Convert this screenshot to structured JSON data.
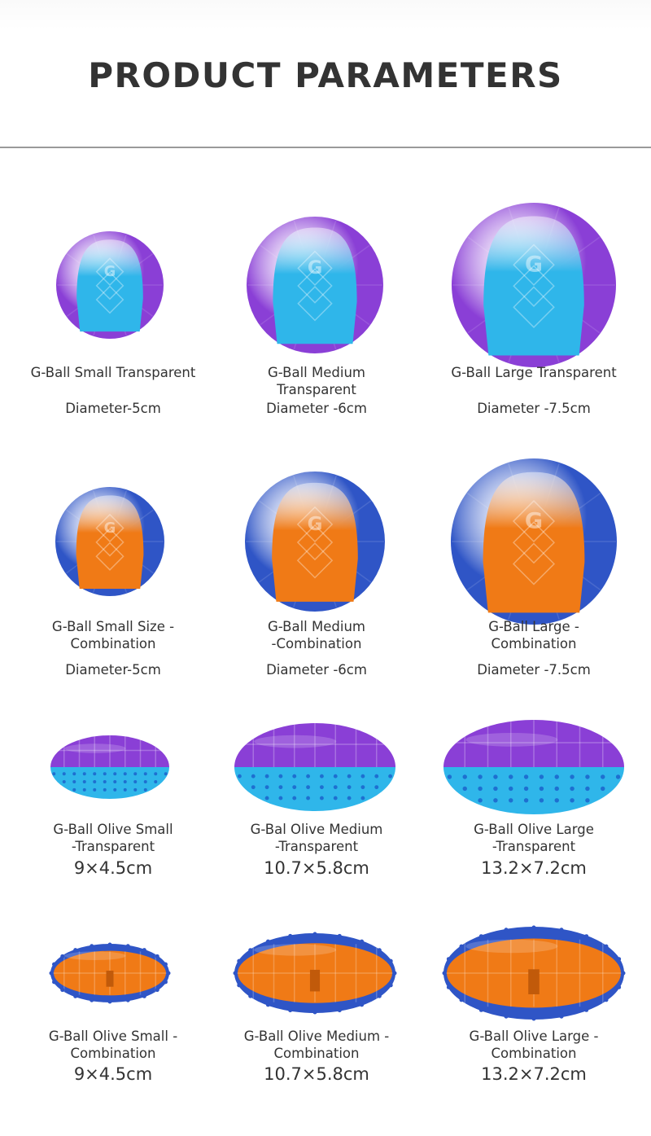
{
  "page": {
    "title": "PRODUCT PARAMETERS"
  },
  "products": [
    {
      "name": "G-Ball Small Transparent",
      "size": "Diameter-5cm",
      "shape": "ball",
      "style": "transparent"
    },
    {
      "name": "G-Ball Medium\nTransparent",
      "size": "Diameter -6cm",
      "shape": "ball",
      "style": "transparent"
    },
    {
      "name": "G-Ball Large Transparent",
      "size": "Diameter -7.5cm",
      "shape": "ball",
      "style": "transparent"
    },
    {
      "name": "G-Ball Small Size -\nCombination",
      "size": "Diameter-5cm",
      "shape": "ball",
      "style": "combination"
    },
    {
      "name": "G-Ball Medium\n-Combination",
      "size": "Diameter -6cm",
      "shape": "ball",
      "style": "combination"
    },
    {
      "name": "G-Ball Large -\nCombination",
      "size": "Diameter -7.5cm",
      "shape": "ball",
      "style": "combination"
    },
    {
      "name": "G-Ball Olive Small\n-Transparent",
      "size": "9×4.5cm",
      "shape": "olive",
      "style": "transparent"
    },
    {
      "name": "G-Bal Olive Medium\n-Transparent",
      "size": "10.7×5.8cm",
      "shape": "olive",
      "style": "transparent"
    },
    {
      "name": "G-Ball Olive Large\n-Transparent",
      "size": "13.2×7.2cm",
      "shape": "olive",
      "style": "transparent"
    },
    {
      "name": "G-Ball Olive Small -\nCombination",
      "size": "9×4.5cm",
      "shape": "olive",
      "style": "combination"
    },
    {
      "name": "G-Ball Olive Medium -\nCombination",
      "size": "10.7×5.8cm",
      "shape": "olive",
      "style": "combination"
    },
    {
      "name": "G-Ball Olive Large -\nCombination",
      "size": "13.2×7.2cm",
      "shape": "olive",
      "style": "combination"
    }
  ],
  "colors": {
    "transparent_shell": "#8a3fd6",
    "transparent_core": "#2fb6ea",
    "combination_shell": "#2f55c6",
    "combination_core": "#f07a16",
    "text": "#333333"
  }
}
